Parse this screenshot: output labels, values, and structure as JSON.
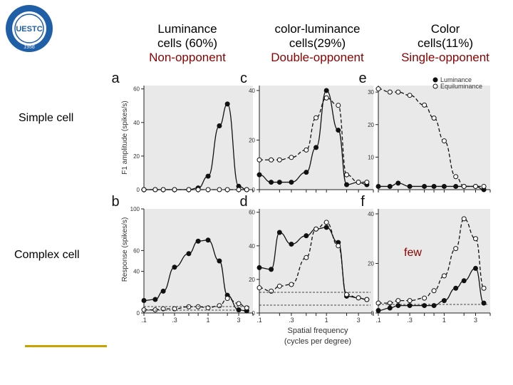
{
  "headers": {
    "col1": {
      "line1": "Luminance",
      "line2": "cells (60%)",
      "line3": "Non-opponent"
    },
    "col2": {
      "line1": "color-luminance",
      "line2": "cells(29%)",
      "line3": "Double-opponent"
    },
    "col3": {
      "line1": "Color",
      "line2": "cells(11%)",
      "line3": "Single-opponent"
    }
  },
  "row_labels": {
    "simple": "Simple cell",
    "complex": "Complex cell"
  },
  "annotation": "few",
  "logo": {
    "text": "UESTC",
    "year": "1956",
    "color": "#1f5fa8"
  },
  "colors": {
    "accent_red": "#8b0000",
    "gold": "#c9a200",
    "plot_bg": "#e9e9e9"
  },
  "axis_text": {
    "y_top": "F1 amplitude (spikes/s)",
    "y_bottom": "Response (spikes/s)",
    "x_label": "Spatial frequency",
    "x_label2": "(cycles per degree)"
  },
  "chart_data": [
    {
      "type": "line",
      "panel": "a",
      "x_scale": "log",
      "xlim": [
        0.1,
        5
      ],
      "ylim": [
        0,
        62
      ],
      "yticks": [
        0,
        20,
        40,
        60
      ],
      "series": [
        {
          "style": "filled",
          "x": [
            0.1,
            0.15,
            0.2,
            0.3,
            0.5,
            0.7,
            1.0,
            1.5,
            2.0,
            3.0,
            4.0
          ],
          "y": [
            0,
            0,
            0,
            0,
            0,
            1,
            8,
            38,
            51,
            2,
            0
          ]
        },
        {
          "style": "open",
          "x": [
            0.1,
            0.15,
            0.2,
            0.3,
            0.5,
            0.7,
            1.0,
            1.5,
            2.0,
            3.0,
            4.0
          ],
          "y": [
            0,
            0,
            0,
            0,
            0,
            0,
            0,
            0,
            0,
            0,
            0
          ]
        }
      ]
    },
    {
      "type": "line",
      "panel": "c",
      "x_scale": "log",
      "xlim": [
        0.1,
        5
      ],
      "ylim": [
        0,
        42
      ],
      "yticks": [
        0,
        20,
        40
      ],
      "series": [
        {
          "style": "filled",
          "x": [
            0.1,
            0.15,
            0.2,
            0.3,
            0.5,
            0.7,
            1.0,
            1.5,
            2.0,
            3.0,
            4.0
          ],
          "y": [
            6,
            3,
            3,
            3,
            7,
            17,
            40,
            24,
            2,
            3,
            2
          ]
        },
        {
          "style": "open",
          "x": [
            0.1,
            0.15,
            0.2,
            0.3,
            0.5,
            0.7,
            1.0,
            1.5,
            2.0,
            3.0,
            4.0
          ],
          "y": [
            12,
            12,
            12,
            13,
            16,
            29,
            37,
            34,
            6,
            3,
            3
          ]
        }
      ]
    },
    {
      "type": "line",
      "panel": "e",
      "x_scale": "log",
      "xlim": [
        0.1,
        5
      ],
      "ylim": [
        0,
        32
      ],
      "yticks": [
        10,
        20,
        30
      ],
      "legend": [
        {
          "marker": "filled",
          "name": "Luminance"
        },
        {
          "marker": "open",
          "name": "Equiluminance"
        }
      ],
      "series": [
        {
          "style": "filled",
          "name": "Luminance",
          "x": [
            0.1,
            0.15,
            0.2,
            0.3,
            0.5,
            0.7,
            1.0,
            1.5,
            2.0,
            3.0,
            4.0
          ],
          "y": [
            1,
            1,
            2,
            1,
            1,
            1,
            1,
            1,
            1,
            1,
            0
          ]
        },
        {
          "style": "open",
          "name": "Equiluminance",
          "x": [
            0.1,
            0.15,
            0.2,
            0.3,
            0.5,
            0.7,
            1.0,
            1.5,
            2.0,
            3.0,
            4.0
          ],
          "y": [
            31,
            30,
            30,
            29,
            26,
            22,
            15,
            4,
            1,
            1,
            1
          ]
        }
      ]
    },
    {
      "type": "line",
      "panel": "b",
      "x_scale": "log",
      "xlim": [
        0.1,
        5
      ],
      "ylim": [
        0,
        100
      ],
      "yticks": [
        0,
        40,
        60,
        100
      ],
      "series": [
        {
          "style": "filled",
          "x": [
            0.1,
            0.15,
            0.2,
            0.3,
            0.5,
            0.7,
            1.0,
            1.5,
            2.0,
            3.0,
            4.0
          ],
          "y": [
            12,
            13,
            21,
            44,
            57,
            69,
            70,
            50,
            17,
            3,
            2
          ]
        },
        {
          "style": "open",
          "x": [
            0.1,
            0.15,
            0.2,
            0.3,
            0.5,
            0.7,
            1.0,
            1.5,
            2.0,
            3.0,
            4.0
          ],
          "y": [
            3,
            3,
            4,
            4,
            6,
            6,
            5,
            7,
            14,
            9,
            5
          ]
        }
      ]
    },
    {
      "type": "line",
      "panel": "d",
      "x_scale": "log",
      "xlim": [
        0.1,
        5
      ],
      "ylim": [
        0,
        62
      ],
      "yticks": [
        0,
        20,
        40,
        60
      ],
      "series": [
        {
          "style": "filled",
          "x": [
            0.1,
            0.15,
            0.2,
            0.3,
            0.5,
            0.7,
            1.0,
            1.5,
            2.0,
            3.0,
            4.0
          ],
          "y": [
            27,
            26,
            48,
            41,
            46,
            50,
            51,
            42,
            10,
            9,
            8
          ]
        },
        {
          "style": "open",
          "x": [
            0.1,
            0.15,
            0.2,
            0.3,
            0.5,
            0.7,
            1.0,
            1.5,
            2.0,
            3.0,
            4.0
          ],
          "y": [
            15,
            13,
            16,
            17,
            33,
            50,
            54,
            40,
            11,
            9,
            8
          ]
        }
      ]
    },
    {
      "type": "line",
      "panel": "f",
      "x_scale": "log",
      "xlim": [
        0.1,
        5
      ],
      "ylim": [
        0,
        42
      ],
      "yticks": [
        0,
        20,
        40
      ],
      "series": [
        {
          "style": "filled",
          "x": [
            0.1,
            0.15,
            0.2,
            0.3,
            0.5,
            0.7,
            1.0,
            1.5,
            2.0,
            3.0,
            4.0
          ],
          "y": [
            1,
            2,
            3,
            3,
            3,
            3,
            5,
            10,
            13,
            18,
            4
          ]
        },
        {
          "style": "open",
          "x": [
            0.1,
            0.15,
            0.2,
            0.3,
            0.5,
            0.7,
            1.0,
            1.5,
            2.0,
            3.0,
            4.0
          ],
          "y": [
            4,
            4,
            5,
            5,
            6,
            9,
            15,
            26,
            38,
            30,
            10
          ]
        }
      ]
    }
  ]
}
